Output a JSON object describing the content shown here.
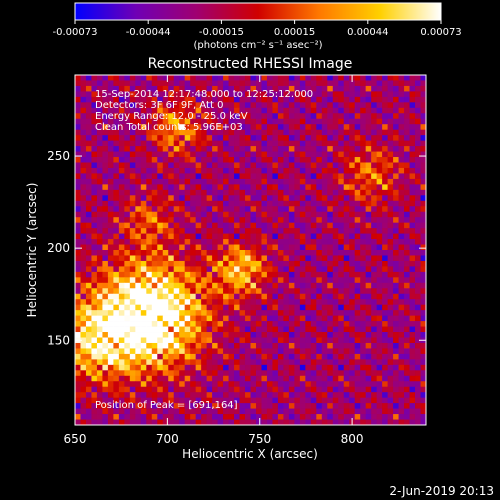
{
  "chart_data": {
    "type": "heatmap",
    "title": "Reconstructed RHESSI Image",
    "xlabel": "Heliocentric X (arcsec)",
    "ylabel": "Heliocentric Y (arcsec)",
    "xlim": [
      650,
      840
    ],
    "ylim": [
      104,
      294
    ],
    "xticks": [
      650,
      700,
      750,
      800
    ],
    "yticks": [
      150,
      200,
      250
    ],
    "info_lines": [
      "15-Sep-2014 12:17:48.000 to 12:25:12.000",
      "Detectors: 3F 6F 9F, Att 0",
      "Energy Range: 12.0 - 25.0 keV",
      "Clean     Total counts: 5.96E+03"
    ],
    "peak_text": "Position of Peak = [691,164]",
    "peak_position": [
      691,
      164
    ],
    "colorbar": {
      "min": -0.00073,
      "max": 0.00073,
      "tick_labels": [
        "-0.00073",
        "-0.00044",
        "-0.00015",
        "0.00015",
        "0.00044",
        "0.00073"
      ],
      "unit_label": "(photons cm⁻² s⁻¹ asec⁻²)",
      "colors": [
        "#0000ff",
        "#6f00b5",
        "#a00070",
        "#d00000",
        "#ff7800",
        "#ffd000",
        "#ffffff"
      ]
    },
    "grid": false,
    "date_stamp": "2-Jun-2019 20:13"
  }
}
